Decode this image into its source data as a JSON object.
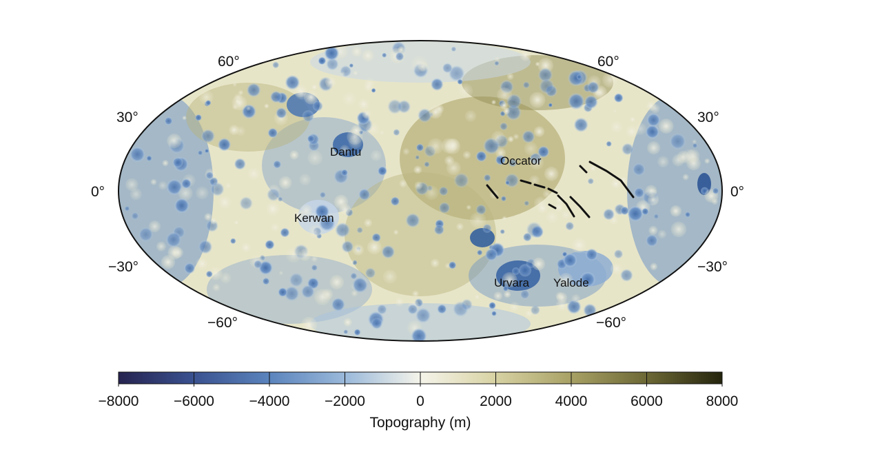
{
  "map": {
    "latitude_labels_left": [
      "60°",
      "30°",
      "0°",
      "−30°",
      "−60°"
    ],
    "latitude_labels_right": [
      "60°",
      "30°",
      "0°",
      "−30°",
      "−60°"
    ],
    "features": {
      "dantu": "Dantu",
      "kerwan": "Kerwan",
      "occator": "Occator",
      "urvara": "Urvara",
      "yalode": "Yalode"
    },
    "colors": {
      "deep_low": "#26234f",
      "low": "#4b74b0",
      "mid_low": "#a9c5e0",
      "zero": "#f5f4ea",
      "mid_high": "#cfc99a",
      "high": "#8e874d",
      "peak": "#2c2c12"
    }
  },
  "colorbar": {
    "ticks": [
      "−8000",
      "−6000",
      "−4000",
      "−2000",
      "0",
      "2000",
      "4000",
      "6000",
      "8000"
    ],
    "range": [
      -8000,
      8000
    ],
    "title": "Topography (m)"
  }
}
